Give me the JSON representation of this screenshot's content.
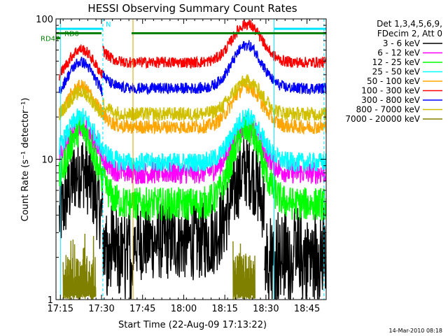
{
  "chart_data": {
    "type": "line",
    "title": "HESSI Observing Summary Count Rates",
    "ylabel": "Count Rate (s⁻¹ detector⁻¹)",
    "xlabel": "Start Time (22-Aug-09 17:13:22)",
    "x_start_min": 1033.4,
    "x_end_min": 1132.0,
    "y_scale": "log",
    "ylim": [
      1,
      100
    ],
    "x_ticks": [
      {
        "min": 1035,
        "label": "17:15"
      },
      {
        "min": 1050,
        "label": "17:30"
      },
      {
        "min": 1065,
        "label": "17:45"
      },
      {
        "min": 1080,
        "label": "18:00"
      },
      {
        "min": 1095,
        "label": "18:15"
      },
      {
        "min": 1110,
        "label": "18:30"
      },
      {
        "min": 1125,
        "label": "18:45"
      }
    ],
    "y_ticks": [
      {
        "value": 1,
        "label": "1"
      },
      {
        "value": 10,
        "label": "10"
      },
      {
        "value": 100,
        "label": "100"
      }
    ],
    "legend": {
      "position": "right",
      "header": [
        "Det 1,3,4,5,6,9,",
        "FDecim 2, Att 0"
      ]
    },
    "series": [
      {
        "name": "3 - 6 keV",
        "color": "#000000",
        "base": 2.6,
        "peak": 8.5,
        "noise": 0.28,
        "gap_low": 2.0,
        "offset_pre": 0.0
      },
      {
        "name": "6 - 12 keV",
        "color": "#ff00ff",
        "base": 8.0,
        "peak": 17.5,
        "noise": 0.08,
        "gap_low": 0,
        "offset_pre": 0.0
      },
      {
        "name": "12 - 25 keV",
        "color": "#00ff00",
        "base": 4.8,
        "peak": 16.5,
        "noise": 0.12,
        "gap_low": 0,
        "offset_pre": 0.0
      },
      {
        "name": "25 - 50 keV",
        "color": "#00ffff",
        "base": 9.5,
        "peak": 20.0,
        "noise": 0.07,
        "gap_low": 0,
        "offset_pre": 0.0
      },
      {
        "name": "50 - 100 keV",
        "color": "#ffa500",
        "base": 17.0,
        "peak": 33.0,
        "noise": 0.05,
        "gap_low": 0,
        "offset_pre": 0.0
      },
      {
        "name": "100 - 300 keV",
        "color": "#ff0000",
        "base": 49.0,
        "peak": 92.0,
        "noise": 0.04,
        "gap_low": 0,
        "offset_pre": -0.18
      },
      {
        "name": "300 - 800 keV",
        "color": "#0000ff",
        "base": 32.0,
        "peak": 65.0,
        "noise": 0.04,
        "gap_low": 0,
        "offset_pre": -0.12
      },
      {
        "name": "800 - 7000 keV",
        "color": "#d0c000",
        "base": 21.0,
        "peak": 36.0,
        "noise": 0.05,
        "gap_low": 0,
        "offset_pre": -0.08
      },
      {
        "name": "7000 - 20000 keV",
        "color": "#808000",
        "base": 0,
        "peak": 0,
        "noise": 0,
        "gap_low": 0,
        "offset_pre": 0.0
      }
    ],
    "peaks_min": [
      1042.5,
      1103.0
    ],
    "data_gaps_min": [
      [
        1050.5,
        1061.5
      ],
      [
        1109.5,
        1132.0
      ]
    ],
    "flags": [
      {
        "label": "N",
        "color": "#00e5ff",
        "spans_min": [
          [
            1033.4,
            1050.5
          ],
          [
            1113.0,
            1132.0
          ]
        ],
        "level": 85
      },
      {
        "label": "RD0",
        "color": "#008000",
        "spans_min": [
          [
            1033.4,
            1050.0
          ],
          [
            1061.0,
            1132.0
          ]
        ],
        "level": 79
      },
      {
        "label": "RD47",
        "color": "#008000",
        "spans_min": [
          [
            1033.4,
            1035.0
          ]
        ],
        "level": 73
      }
    ],
    "footer_date": "14-Mar-2010 08:18"
  }
}
